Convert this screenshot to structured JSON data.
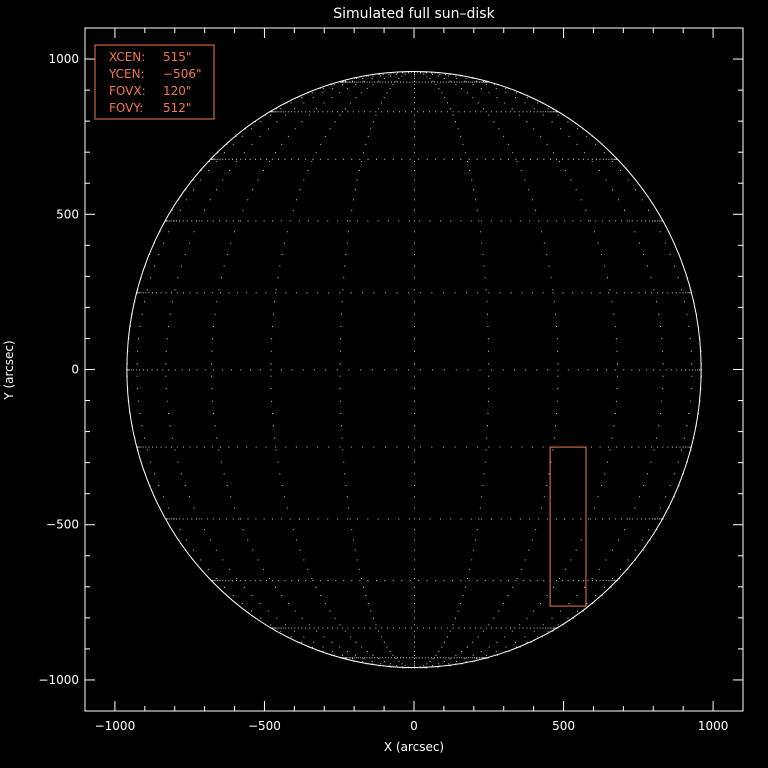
{
  "chart_data": {
    "type": "scatter",
    "title": "Simulated full sun–disk",
    "xlabel": "X (arcsec)",
    "ylabel": "Y (arcsec)",
    "xlim": [
      -1100,
      1100
    ],
    "ylim": [
      -1100,
      1100
    ],
    "x_ticks": [
      -1000,
      -500,
      0,
      500,
      1000
    ],
    "y_ticks": [
      -1000,
      -500,
      0,
      500,
      1000
    ],
    "x_tick_labels": [
      "−1000",
      "−500",
      "0",
      "500",
      "1000"
    ],
    "y_tick_labels": [
      "−1000",
      "−500",
      "0",
      "500",
      "1000"
    ],
    "solar_radius": 960,
    "grid_spacing_deg": 15,
    "fov_box": {
      "xcen": 515,
      "ycen": -506,
      "fovx": 120,
      "fovy": 512
    },
    "legend": [
      {
        "label": "XCEN:",
        "value": "515\""
      },
      {
        "label": "YCEN:",
        "value": "−506\""
      },
      {
        "label": "FOVX:",
        "value": "120\""
      },
      {
        "label": "FOVY:",
        "value": "512\""
      }
    ],
    "legend_placement": "top-left",
    "colors": {
      "foreground": "#ffffff",
      "background": "#000000",
      "fov": "#f07850"
    }
  }
}
